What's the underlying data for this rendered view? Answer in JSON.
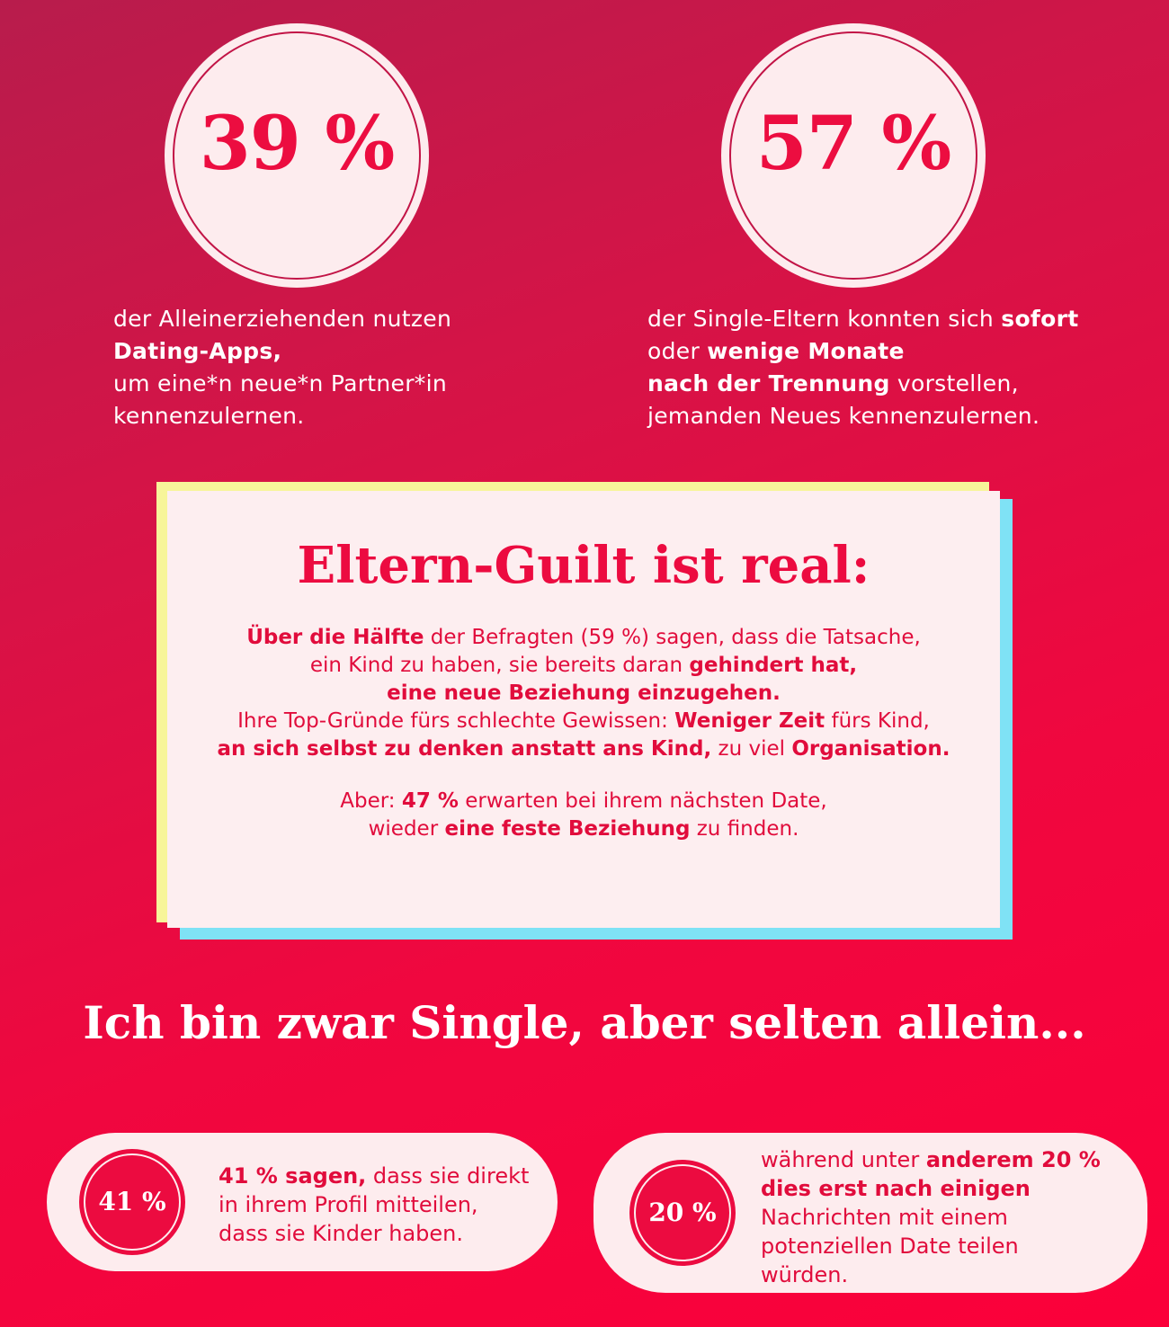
{
  "stats_top": [
    {
      "value": "39 %",
      "lines": [
        [
          {
            "t": "der Alleinerziehenden nutzen",
            "b": false
          }
        ],
        [
          {
            "t": "Dating-Apps,",
            "b": true
          }
        ],
        [
          {
            "t": "um eine*n neue*n Partner*in",
            "b": false
          }
        ],
        [
          {
            "t": "kennenzulernen.",
            "b": false
          }
        ]
      ]
    },
    {
      "value": "57 %",
      "lines": [
        [
          {
            "t": "der Single-Eltern konnten sich ",
            "b": false
          },
          {
            "t": "sofort",
            "b": true
          }
        ],
        [
          {
            "t": "oder ",
            "b": false
          },
          {
            "t": "wenige Monate",
            "b": true
          }
        ],
        [
          {
            "t": "nach der Trennung",
            "b": true
          },
          {
            "t": " vorstellen,",
            "b": false
          }
        ],
        [
          {
            "t": "jemanden Neues kennenzulernen.",
            "b": false
          }
        ]
      ]
    }
  ],
  "card": {
    "title": "Eltern-Guilt ist real:",
    "para1": [
      [
        {
          "t": "Über die Hälfte",
          "b": true
        },
        {
          "t": " der Befragten (59 %) sagen, dass die Tatsache,",
          "b": false
        }
      ],
      [
        {
          "t": "ein Kind zu haben, sie bereits daran ",
          "b": false
        },
        {
          "t": "gehindert hat,",
          "b": true
        }
      ],
      [
        {
          "t": "eine neue Beziehung einzugehen.",
          "b": true
        }
      ],
      [
        {
          "t": "Ihre Top-Gründe fürs schlechte Gewissen: ",
          "b": false
        },
        {
          "t": "Weniger Zeit",
          "b": true
        },
        {
          "t": " fürs Kind,",
          "b": false
        }
      ],
      [
        {
          "t": "an sich selbst zu denken anstatt ans Kind,",
          "b": true
        },
        {
          "t": " zu viel ",
          "b": false
        },
        {
          "t": "Organisation.",
          "b": true
        }
      ]
    ],
    "para2": [
      [
        {
          "t": "Aber: ",
          "b": false
        },
        {
          "t": "47 %",
          "b": true
        },
        {
          "t": " erwarten bei ihrem nächsten Date,",
          "b": false
        }
      ],
      [
        {
          "t": "wieder ",
          "b": false
        },
        {
          "t": "eine feste Beziehung",
          "b": true
        },
        {
          "t": " zu finden.",
          "b": false
        }
      ]
    ]
  },
  "headline": "Ich bin zwar Single, aber selten allein...",
  "stats_bottom": [
    {
      "value": "41 %",
      "lines": [
        [
          {
            "t": "41 % sagen,",
            "b": true
          },
          {
            "t": " dass sie direkt",
            "b": false
          }
        ],
        [
          {
            "t": "in ihrem Profil mitteilen,",
            "b": false
          }
        ],
        [
          {
            "t": "dass sie Kinder haben.",
            "b": false
          }
        ]
      ]
    },
    {
      "value": "20 %",
      "lines": [
        [
          {
            "t": "während unter ",
            "b": false
          },
          {
            "t": "anderem 20 %",
            "b": true
          }
        ],
        [
          {
            "t": "dies erst nach einigen",
            "b": true
          }
        ],
        [
          {
            "t": "Nachrichten mit einem",
            "b": false
          }
        ],
        [
          {
            "t": "potenziellen Date teilen",
            "b": false
          }
        ],
        [
          {
            "t": "würden.",
            "b": false
          }
        ]
      ]
    }
  ],
  "colors": {
    "accent": "#ec0b40",
    "card_bg": "#fdeef0",
    "card_shadow_yellow": "#f7f59a",
    "card_shadow_blue": "#7fe2f5"
  }
}
